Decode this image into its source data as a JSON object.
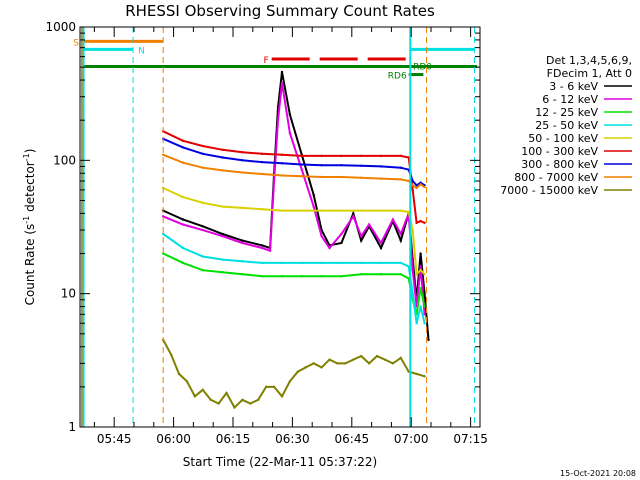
{
  "chart_data": {
    "type": "line",
    "title": "RHESSI Observing Summary Count Rates",
    "xlabel": "Start Time (22-Mar-11 05:37:22)",
    "ylabel_main": "Count Rate (s",
    "ylabel_sup": "-1",
    "ylabel_mid": " detector",
    "ylabel_sup2": "-1",
    "ylabel_end": ")",
    "yscale": "log",
    "ylim": [
      1,
      1000
    ],
    "xlim_minutes": [
      -1,
      100
    ],
    "x_ticks": [
      "05:45",
      "06:00",
      "06:15",
      "06:30",
      "06:45",
      "07:00",
      "07:15"
    ],
    "x_tick_minutes": [
      7.63,
      22.63,
      37.63,
      52.63,
      67.63,
      82.63,
      97.63
    ],
    "y_ticks": [
      "1",
      "10",
      "100",
      "1000"
    ],
    "y_tick_values": [
      1,
      10,
      100,
      1000
    ],
    "timestamp": "15-Oct-2021 20:08",
    "legend": {
      "header": [
        "Det 1,3,4,5,6,9,",
        "FDecim 1, Att 0"
      ],
      "placement": "right",
      "entries": [
        {
          "label": "3 - 6 keV",
          "color": "#000000"
        },
        {
          "label": "6 - 12 keV",
          "color": "#e000e0"
        },
        {
          "label": "12 - 25 keV",
          "color": "#00e000"
        },
        {
          "label": "25 - 50 keV",
          "color": "#00e0e0"
        },
        {
          "label": "50 - 100 keV",
          "color": "#d8d000"
        },
        {
          "label": "100 - 300 keV",
          "color": "#e00000"
        },
        {
          "label": "300 - 800 keV",
          "color": "#0000e0"
        },
        {
          "label": "800 - 7000 keV",
          "color": "#f08000"
        },
        {
          "label": "7000 - 15000 keV",
          "color": "#808000"
        }
      ]
    },
    "flags": [
      {
        "label": "S",
        "color": "#f08000",
        "start": -0.5,
        "end": 19.9,
        "level": 780
      },
      {
        "label": "N",
        "color": "#00e0e0",
        "start": -0.5,
        "end": 12.4,
        "level": 680
      },
      {
        "label": "F",
        "color": "#e00000",
        "start": 47.4,
        "end": 82.1,
        "level": 575,
        "dashed": true
      },
      {
        "label": "RD0",
        "color": "#00e0e0",
        "start": 82.6,
        "end": 98.6,
        "level": 680
      },
      {
        "label": "RD6",
        "color": "#008000",
        "start": 82.0,
        "end": 85.7,
        "level": 440
      }
    ],
    "green_bar": {
      "start": -0.5,
      "end": 99.3,
      "level": 505
    },
    "vertical_markers": [
      {
        "minute": -0.5,
        "color": "#f08000",
        "style": "solid"
      },
      {
        "minute": -0.1,
        "color": "#00e0e0",
        "style": "solid"
      },
      {
        "minute": 12.4,
        "color": "#00e0e0",
        "style": "dashed"
      },
      {
        "minute": 20.0,
        "color": "#f08000",
        "style": "dashed"
      },
      {
        "minute": 82.4,
        "color": "#00e0e0",
        "style": "solid"
      },
      {
        "minute": 86.5,
        "color": "#f08000",
        "style": "dashed"
      },
      {
        "minute": 98.6,
        "color": "#00e0e0",
        "style": "dashed"
      }
    ],
    "series": [
      {
        "name": "3 - 6 keV",
        "color": "#000000",
        "x": [
          20,
          25,
          30,
          35,
          40,
          45,
          47,
          48,
          49,
          50,
          52,
          55,
          58,
          60,
          62,
          65,
          68,
          70,
          72,
          75,
          78,
          80,
          82,
          83,
          84,
          85,
          86,
          87
        ],
        "y": [
          42,
          36,
          32,
          28,
          25,
          23,
          22,
          80,
          250,
          460,
          220,
          110,
          55,
          30,
          23,
          24,
          40,
          25,
          32,
          22,
          35,
          25,
          40,
          18,
          9,
          20,
          10,
          4.5
        ]
      },
      {
        "name": "6 - 12 keV",
        "color": "#e000e0",
        "x": [
          20,
          25,
          30,
          35,
          40,
          45,
          47,
          48,
          49,
          50,
          52,
          55,
          58,
          60,
          62,
          65,
          68,
          70,
          72,
          75,
          78,
          80,
          82,
          83,
          84,
          85,
          86
        ],
        "y": [
          38,
          33,
          30,
          27,
          24,
          22,
          21,
          70,
          200,
          380,
          160,
          85,
          45,
          27,
          22,
          28,
          38,
          27,
          33,
          24,
          36,
          28,
          40,
          15,
          8,
          16,
          7
        ]
      },
      {
        "name": "12 - 25 keV",
        "color": "#00e000",
        "x": [
          20,
          25,
          30,
          35,
          40,
          45,
          50,
          55,
          60,
          65,
          70,
          75,
          80,
          82,
          83,
          84,
          85,
          86
        ],
        "y": [
          20,
          17,
          15,
          14.5,
          14,
          13.5,
          13.5,
          13.5,
          13.5,
          13.5,
          14,
          14,
          14,
          13,
          9,
          7,
          11,
          8
        ]
      },
      {
        "name": "25 - 50 keV",
        "color": "#00e0e0",
        "x": [
          20,
          25,
          30,
          35,
          40,
          45,
          50,
          55,
          60,
          65,
          70,
          75,
          80,
          82,
          83,
          84,
          85,
          86
        ],
        "y": [
          28,
          22,
          19,
          18,
          17.5,
          17,
          17,
          17,
          17,
          17,
          17,
          17,
          17,
          16,
          10,
          6,
          8,
          6
        ]
      },
      {
        "name": "50 - 100 keV",
        "color": "#d8d000",
        "x": [
          20,
          25,
          30,
          35,
          40,
          45,
          50,
          55,
          60,
          65,
          70,
          75,
          80,
          82,
          83,
          84,
          85,
          86
        ],
        "y": [
          62,
          53,
          48,
          45,
          44,
          43,
          42,
          42,
          42,
          42,
          42,
          42,
          42,
          41,
          30,
          14,
          15,
          14
        ]
      },
      {
        "name": "100 - 300 keV",
        "color": "#e00000",
        "x": [
          20,
          25,
          30,
          35,
          40,
          45,
          50,
          55,
          60,
          65,
          70,
          75,
          80,
          82,
          83,
          84,
          85,
          86
        ],
        "y": [
          165,
          140,
          128,
          120,
          115,
          112,
          110,
          108,
          108,
          108,
          108,
          108,
          108,
          105,
          60,
          34,
          35,
          34
        ]
      },
      {
        "name": "300 - 800 keV",
        "color": "#0000e0",
        "x": [
          20,
          25,
          30,
          35,
          40,
          45,
          50,
          55,
          60,
          65,
          70,
          75,
          80,
          82,
          83,
          84,
          85,
          86
        ],
        "y": [
          145,
          125,
          112,
          105,
          100,
          97,
          95,
          93,
          92,
          92,
          91,
          90,
          88,
          85,
          70,
          65,
          68,
          65
        ]
      },
      {
        "name": "800 - 7000 keV",
        "color": "#f08000",
        "x": [
          20,
          25,
          30,
          35,
          40,
          45,
          50,
          55,
          60,
          65,
          70,
          75,
          80,
          82,
          83,
          84,
          85,
          86
        ],
        "y": [
          110,
          96,
          88,
          84,
          81,
          79,
          77,
          76,
          75,
          75,
          74,
          73,
          72,
          70,
          65,
          62,
          66,
          63
        ]
      },
      {
        "name": "7000 - 15000 keV",
        "color": "#808000",
        "x": [
          20,
          22,
          24,
          26,
          28,
          30,
          32,
          34,
          36,
          38,
          40,
          42,
          44,
          46,
          48,
          50,
          52,
          54,
          56,
          58,
          60,
          62,
          64,
          66,
          68,
          70,
          72,
          74,
          76,
          78,
          80,
          82,
          84,
          86
        ],
        "y": [
          4.5,
          3.5,
          2.5,
          2.2,
          1.7,
          1.9,
          1.6,
          1.5,
          1.8,
          1.4,
          1.6,
          1.5,
          1.6,
          2.0,
          2.0,
          1.7,
          2.2,
          2.6,
          2.8,
          3.0,
          2.8,
          3.2,
          3.0,
          3.0,
          3.2,
          3.4,
          3.0,
          3.4,
          3.2,
          3.0,
          3.3,
          2.6,
          2.5,
          2.4
        ]
      }
    ]
  }
}
